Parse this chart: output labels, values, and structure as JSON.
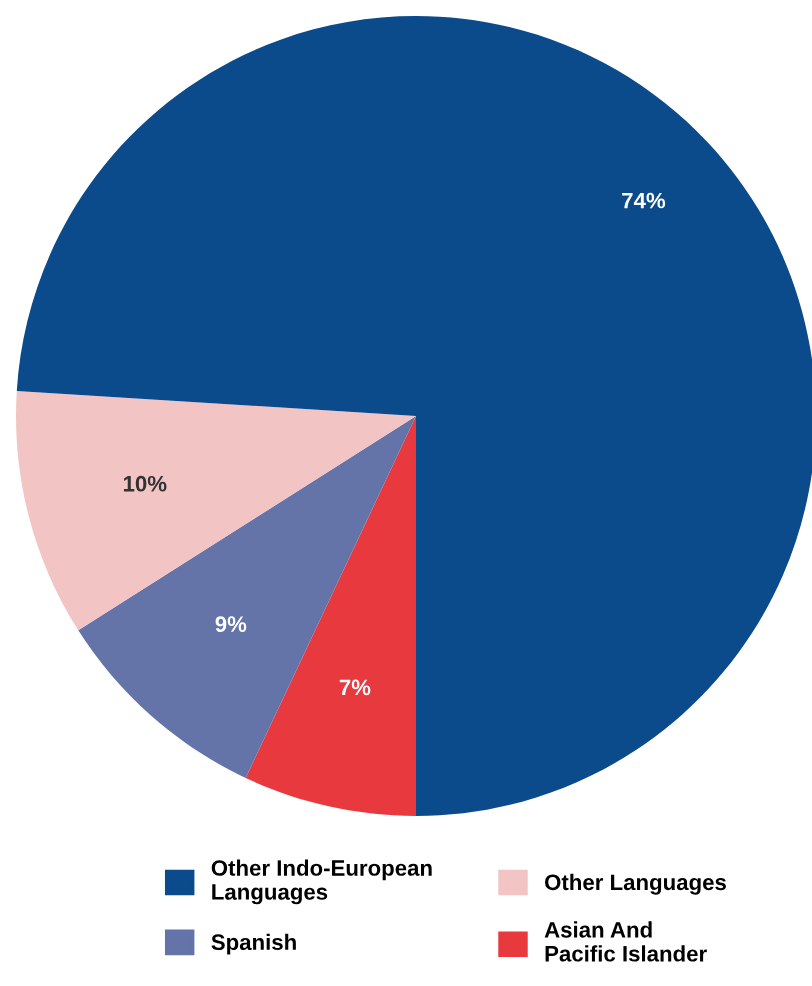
{
  "chart_data": {
    "type": "pie",
    "categories": [
      "Other Indo-European Languages",
      "Other Languages",
      "Spanish",
      "Asian And Pacific Islander"
    ],
    "values": [
      74,
      10,
      9,
      7
    ],
    "colors": [
      "#0b4a8b",
      "#f2c4c4",
      "#6473a8",
      "#e8393f"
    ],
    "value_labels": [
      "74%",
      "10%",
      "9%",
      "7%"
    ],
    "legend": "bottom"
  }
}
